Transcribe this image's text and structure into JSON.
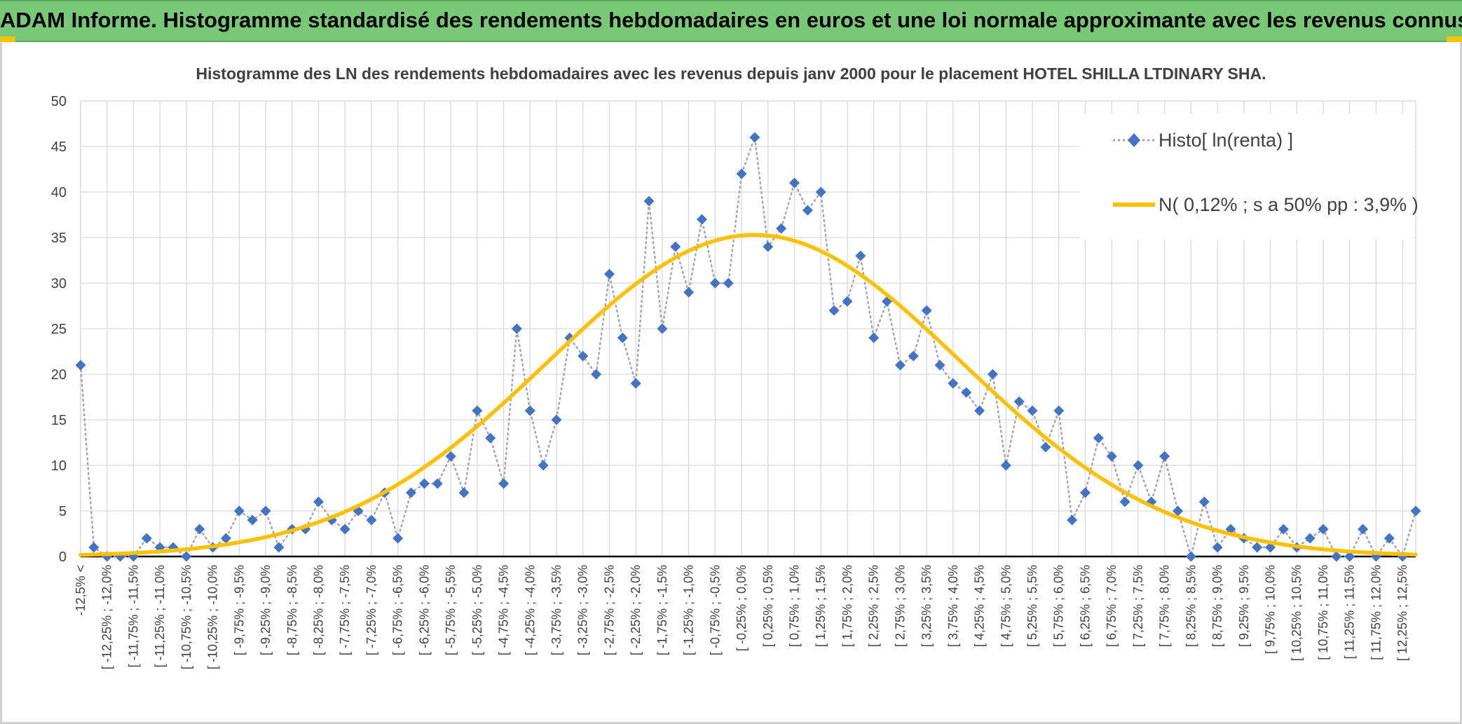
{
  "banner": {
    "title": "ADAM Informe. Histogramme standardisé des rendements hebdomadaires en euros et une loi normale approximante avec les revenus connus distribués"
  },
  "colors": {
    "banner_bg": "#78c878",
    "accent": "#f5c400",
    "series_marker": "#4472c4",
    "series_line": "#a6a6a6",
    "normal_curve": "#ffc000"
  },
  "chart_data": {
    "type": "line",
    "title": "Histogramme des LN des rendements hebdomadaires avec les revenus depuis janv 2000 pour le placement HOTEL SHILLA LTDINARY SHA.",
    "xlabel": "",
    "ylabel": "",
    "ylim": [
      0,
      50
    ],
    "yticks": [
      0,
      5,
      10,
      15,
      20,
      25,
      30,
      35,
      40,
      45,
      50
    ],
    "grid": true,
    "legend_position": "top-right",
    "x_tick_labels": [
      "-12,5% <",
      "[ -12,25% ; -12,0%",
      "[ -11,75% ; -11,5%",
      "[ -11,25% ; -11,0%",
      "[ -10,75% ; -10,5%",
      "[ -10,25% ; -10,0%",
      "[ -9,75% ; -9,5%",
      "[ -9,25% ; -9,0%",
      "[ -8,75% ; -8,5%",
      "[ -8,25% ; -8,0%",
      "[ -7,75% ; -7,5%",
      "[ -7,25% ; -7,0%",
      "[ -6,75% ; -6,5%",
      "[ -6,25% ; -6,0%",
      "[ -5,75% ; -5,5%",
      "[ -5,25% ; -5,0%",
      "[ -4,75% ; -4,5%",
      "[ -4,25% ; -4,0%",
      "[ -3,75% ; -3,5%",
      "[ -3,25% ; -3,0%",
      "[ -2,75% ; -2,5%",
      "[ -2,25% ; -2,0%",
      "[ -1,75% ; -1,5%",
      "[ -1,25% ; -1,0%",
      "[ -0,75% ; -0,5%",
      "[ -0,25% ; 0,0%",
      "[ 0,25% ; 0,5%",
      "[ 0,75% ; 1,0%",
      "[ 1,25% ; 1,5%",
      "[ 1,75% ; 2,0%",
      "[ 2,25% ; 2,5%",
      "[ 2,75% ; 3,0%",
      "[ 3,25% ; 3,5%",
      "[ 3,75% ; 4,0%",
      "[ 4,25% ; 4,5%",
      "[ 4,75% ; 5,0%",
      "[ 5,25% ; 5,5%",
      "[ 5,75% ; 6,0%",
      "[ 6,25% ; 6,5%",
      "[ 6,75% ; 7,0%",
      "[ 7,25% ; 7,5%",
      "[ 7,75% ; 8,0%",
      "[ 8,25% ; 8,5%",
      "[ 8,75% ; 9,0%",
      "[ 9,25% ; 9,5%",
      "[ 9,75% ; 10,0%",
      "[ 10,25% ; 10,5%",
      "[ 10,75% ; 11,0%",
      "[ 11,25% ; 11,5%",
      "[ 11,75% ; 12,0%",
      "[ 12,25% ; 12,5%"
    ],
    "series": [
      {
        "name": "Histo[ ln(renta) ]",
        "style": "dotted-line-diamond-markers",
        "values": [
          21,
          1,
          0,
          0,
          0,
          2,
          1,
          1,
          0,
          3,
          1,
          2,
          5,
          4,
          5,
          1,
          3,
          3,
          6,
          4,
          3,
          5,
          4,
          7,
          2,
          7,
          8,
          8,
          11,
          7,
          16,
          13,
          8,
          25,
          16,
          10,
          15,
          24,
          22,
          20,
          31,
          24,
          19,
          39,
          25,
          34,
          29,
          37,
          30,
          30,
          42,
          46,
          34,
          36,
          41,
          38,
          40,
          27,
          28,
          33,
          24,
          28,
          21,
          22,
          27,
          21,
          19,
          18,
          16,
          20,
          10,
          17,
          16,
          12,
          16,
          4,
          7,
          13,
          11,
          6,
          10,
          6,
          11,
          5,
          0,
          6,
          1,
          3,
          2,
          1,
          1,
          3,
          1,
          2,
          3,
          0,
          0,
          3,
          0,
          2,
          0,
          5
        ]
      },
      {
        "name": "N( 0,12% ; s a 50% pp : 3,9% )",
        "style": "solid-line",
        "mean_percent": 0.12,
        "sd_percent": 3.9,
        "peak": 35.3,
        "bin_width_percent": 0.25,
        "x_start_percent": -12.625
      }
    ]
  }
}
